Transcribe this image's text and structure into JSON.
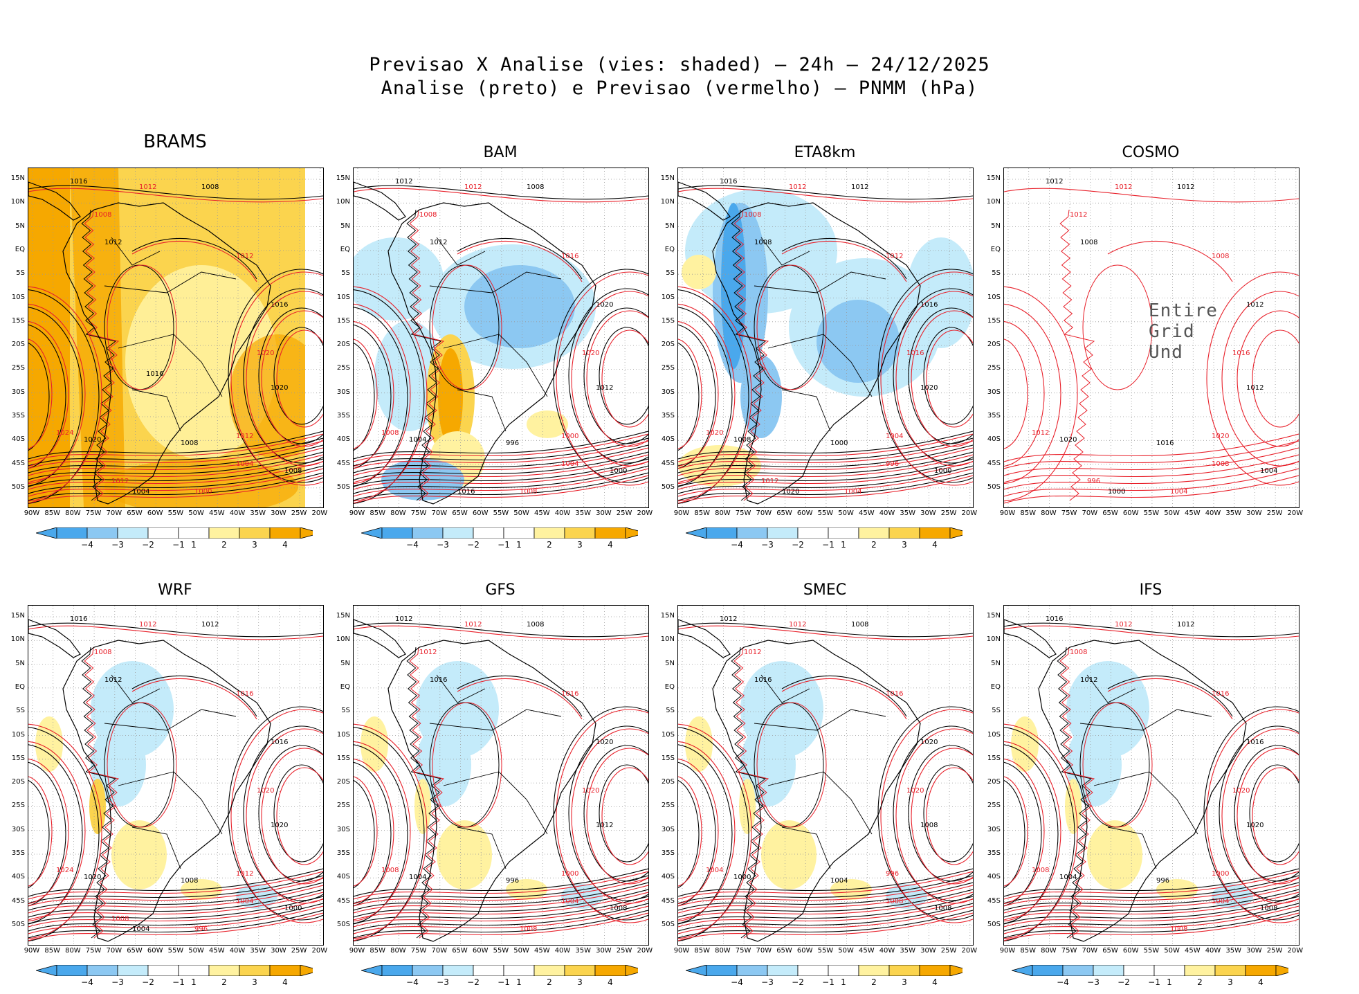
{
  "title_line1": "Previsao X Analise (vies: shaded) – 24h – 24/12/2025",
  "title_line2": "Analise (preto) e Previsao (vermelho) – PNMM (hPa)",
  "colors": {
    "analysis": "#000000",
    "forecast": "#e8202a",
    "neg4": "#4aa8ec",
    "neg3": "#8cc8f2",
    "neg2": "#c4ebfa",
    "neg1": "#ffffff",
    "pos1": "#ffffff",
    "pos2": "#fff2a0",
    "pos3": "#fbd44e",
    "pos4": "#f6a800"
  },
  "lat_labels": [
    "15N",
    "10N",
    "5N",
    "EQ",
    "5S",
    "10S",
    "15S",
    "20S",
    "25S",
    "30S",
    "35S",
    "40S",
    "45S",
    "50S"
  ],
  "lon_labels": [
    "90W",
    "85W",
    "80W",
    "75W",
    "70W",
    "65W",
    "60W",
    "55W",
    "50W",
    "45W",
    "40W",
    "35W",
    "30W",
    "25W",
    "20W"
  ],
  "colorbar_ticks": [
    "−4",
    "−3",
    "−2",
    "−1",
    "1",
    "2",
    "3",
    "4"
  ],
  "panels": [
    {
      "name": "BRAMS",
      "bias": "warm",
      "has_colorbar": true,
      "contour_labels": [
        "1016",
        "1012",
        "1008",
        "1008",
        "1012",
        "1012",
        "1016",
        "1020",
        "1020",
        "1024",
        "1020",
        "1012",
        "1008",
        "1004",
        "1008",
        "1000",
        "1004",
        "1012",
        "1016"
      ]
    },
    {
      "name": "BAM",
      "bias": "mixed",
      "has_colorbar": true,
      "contour_labels": [
        "1012",
        "1012",
        "1008",
        "1008",
        "1012",
        "1016",
        "1020",
        "1020",
        "1012",
        "1008",
        "1004",
        "1000",
        "996",
        "1004",
        "1000",
        "1008",
        "1016"
      ]
    },
    {
      "name": "ETA8km",
      "bias": "cold",
      "has_colorbar": true,
      "contour_labels": [
        "1016",
        "1012",
        "1012",
        "1008",
        "1008",
        "1012",
        "1016",
        "1016",
        "1020",
        "1020",
        "1008",
        "1004",
        "1000",
        "996",
        "1000",
        "1004",
        "1020",
        "1012"
      ]
    },
    {
      "name": "COSMO",
      "bias": "undefined",
      "has_colorbar": false,
      "undefined_text": "Entire Grid Und",
      "contour_labels": [
        "1012",
        "1012",
        "1012",
        "1012",
        "1008",
        "1008",
        "1012",
        "1016",
        "1012",
        "1012",
        "1020",
        "1020",
        "1016",
        "1008",
        "1004",
        "1004",
        "1000",
        "996"
      ]
    },
    {
      "name": "WRF",
      "bias": "weak",
      "has_colorbar": true,
      "contour_labels": [
        "1016",
        "1012",
        "1012",
        "1008",
        "1012",
        "1016",
        "1016",
        "1020",
        "1020",
        "1024",
        "1020",
        "1012",
        "1008",
        "1004",
        "1000",
        "996",
        "1004",
        "1008"
      ]
    },
    {
      "name": "GFS",
      "bias": "weak",
      "has_colorbar": true,
      "contour_labels": [
        "1012",
        "1012",
        "1008",
        "1012",
        "1016",
        "1016",
        "1020",
        "1020",
        "1012",
        "1008",
        "1004",
        "1000",
        "996",
        "1004",
        "1008",
        "1008"
      ]
    },
    {
      "name": "SMEC",
      "bias": "weak",
      "has_colorbar": true,
      "contour_labels": [
        "1012",
        "1012",
        "1008",
        "1012",
        "1016",
        "1016",
        "1020",
        "1020",
        "1008",
        "1004",
        "1000",
        "996",
        "1004",
        "1008",
        "1008"
      ]
    },
    {
      "name": "IFS",
      "bias": "weak",
      "has_colorbar": true,
      "contour_labels": [
        "1016",
        "1012",
        "1012",
        "1008",
        "1012",
        "1016",
        "1016",
        "1020",
        "1020",
        "1008",
        "1004",
        "1000",
        "996",
        "1004",
        "1008",
        "1008"
      ]
    }
  ]
}
